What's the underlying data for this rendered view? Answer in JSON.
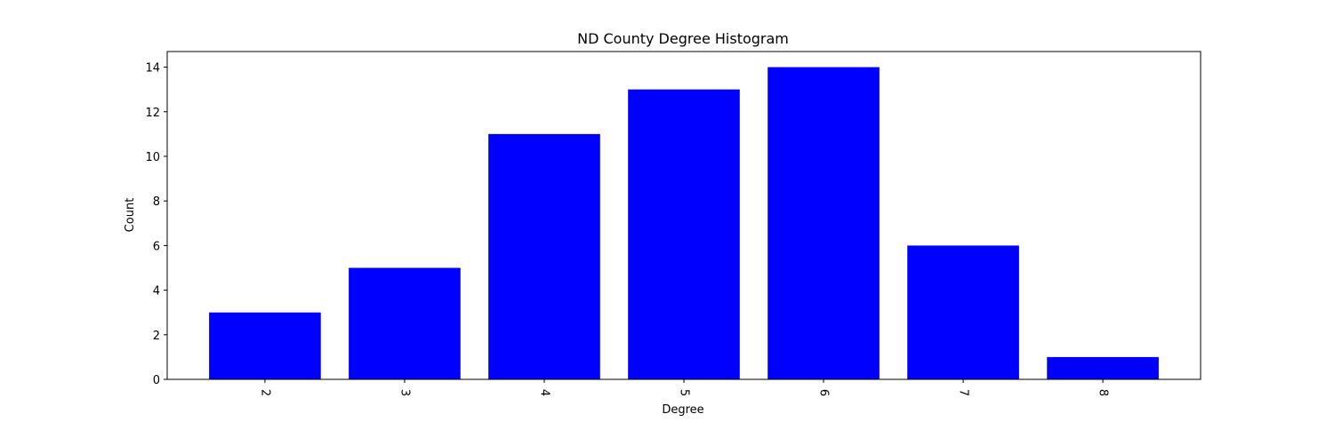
{
  "chart_data": {
    "type": "bar",
    "title": "ND County Degree Histogram",
    "xlabel": "Degree",
    "ylabel": "Count",
    "categories": [
      "2",
      "3",
      "4",
      "5",
      "6",
      "7",
      "8"
    ],
    "values": [
      3,
      5,
      11,
      13,
      14,
      6,
      1
    ],
    "bar_color": "#0000ff",
    "ylim": [
      0,
      14.7
    ],
    "yticks": [
      0,
      2,
      4,
      6,
      8,
      10,
      12,
      14
    ],
    "xtick_rotation": "-90 (rotated labels)",
    "grid": false,
    "legend": "none"
  }
}
